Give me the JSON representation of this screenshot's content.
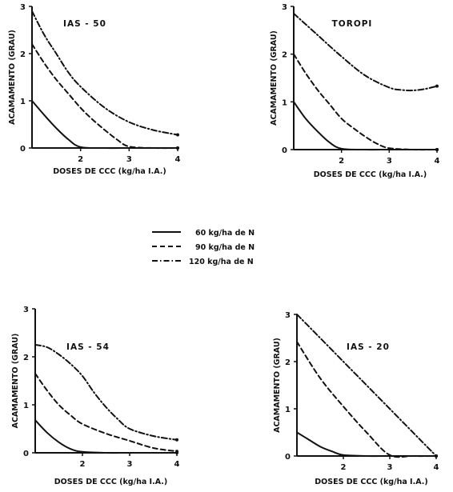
{
  "chart_data": [
    {
      "type": "line",
      "title": "IAS - 50",
      "xlabel": "DOSES DE CCC (kg/ha I.A.)",
      "ylabel": "ACAMAMENTO (GRAU)",
      "xlim": [
        1,
        4
      ],
      "ylim": [
        0,
        3
      ],
      "xticks": [
        "2",
        "3",
        "4"
      ],
      "yticks": [
        "0",
        "1",
        "2",
        "3"
      ],
      "series": [
        {
          "name": "60 kg/ha de N",
          "style": "solid",
          "x": [
            1,
            1.25,
            1.5,
            1.75,
            2,
            2.5,
            3,
            3.5,
            4
          ],
          "y": [
            1.0,
            0.7,
            0.42,
            0.18,
            0.02,
            0.0,
            0.0,
            0.0,
            0.0
          ]
        },
        {
          "name": "90 kg/ha de N",
          "style": "dashed",
          "x": [
            1,
            1.25,
            1.5,
            1.75,
            2,
            2.25,
            2.5,
            2.75,
            3,
            3.5,
            4
          ],
          "y": [
            2.2,
            1.8,
            1.45,
            1.15,
            0.85,
            0.6,
            0.38,
            0.18,
            0.03,
            0.0,
            0.0
          ]
        },
        {
          "name": "120 kg/ha de N",
          "style": "dashdot",
          "x": [
            1,
            1.25,
            1.5,
            1.75,
            2,
            2.5,
            3,
            3.5,
            4
          ],
          "y": [
            2.9,
            2.4,
            2.0,
            1.6,
            1.3,
            0.85,
            0.55,
            0.38,
            0.28
          ]
        }
      ]
    },
    {
      "type": "line",
      "title": "TOROPI",
      "xlabel": "DOSES DE CCC (kg/ha I.A.)",
      "ylabel": "ACAMAMENTO (GRAU)",
      "xlim": [
        1,
        4
      ],
      "ylim": [
        0,
        3
      ],
      "xticks": [
        "2",
        "3",
        "4"
      ],
      "yticks": [
        "0",
        "1",
        "2",
        "3"
      ],
      "series": [
        {
          "name": "60 kg/ha de N",
          "style": "solid",
          "x": [
            1,
            1.25,
            1.5,
            1.75,
            2,
            2.5,
            3,
            3.5,
            4
          ],
          "y": [
            1.0,
            0.65,
            0.38,
            0.15,
            0.02,
            0.0,
            0.0,
            0.0,
            0.0
          ]
        },
        {
          "name": "90 kg/ha de N",
          "style": "dashed",
          "x": [
            1,
            1.25,
            1.5,
            1.75,
            2,
            2.25,
            2.5,
            2.75,
            3,
            3.5,
            4
          ],
          "y": [
            2.0,
            1.6,
            1.25,
            0.95,
            0.65,
            0.45,
            0.27,
            0.12,
            0.03,
            0.0,
            0.0
          ]
        },
        {
          "name": "120 kg/ha de N",
          "style": "dashdot",
          "x": [
            1,
            1.5,
            2,
            2.5,
            3,
            3.25,
            3.5,
            3.75,
            4
          ],
          "y": [
            2.85,
            2.4,
            1.95,
            1.55,
            1.3,
            1.25,
            1.24,
            1.27,
            1.33
          ]
        }
      ]
    },
    {
      "type": "line",
      "title": "IAS - 54",
      "xlabel": "DOSES DE CCC (kg/ha I.A.)",
      "ylabel": "ACAMAMENTO (GRAU)",
      "xlim": [
        1,
        4
      ],
      "ylim": [
        0,
        3
      ],
      "xticks": [
        "2",
        "3",
        "4"
      ],
      "yticks": [
        "0",
        "1",
        "2",
        "3"
      ],
      "series": [
        {
          "name": "60 kg/ha de N",
          "style": "solid",
          "x": [
            1,
            1.25,
            1.5,
            1.75,
            2,
            2.5,
            3,
            3.5,
            4
          ],
          "y": [
            0.68,
            0.42,
            0.22,
            0.08,
            0.02,
            0.0,
            0.0,
            0.0,
            0.0
          ]
        },
        {
          "name": "90 kg/ha de N",
          "style": "dashed",
          "x": [
            1,
            1.25,
            1.5,
            1.75,
            2,
            2.5,
            3,
            3.5,
            4
          ],
          "y": [
            1.65,
            1.3,
            1.0,
            0.78,
            0.6,
            0.4,
            0.25,
            0.1,
            0.03
          ]
        },
        {
          "name": "120 kg/ha de N",
          "style": "dashdot",
          "x": [
            1,
            1.25,
            1.5,
            1.75,
            2,
            2.25,
            2.5,
            2.75,
            3,
            3.5,
            4
          ],
          "y": [
            2.25,
            2.2,
            2.05,
            1.85,
            1.6,
            1.25,
            0.95,
            0.7,
            0.5,
            0.35,
            0.27
          ]
        }
      ]
    },
    {
      "type": "line",
      "title": "IAS - 20",
      "xlabel": "DOSES DE CCC (kg/ha I.A.)",
      "ylabel": "ACAMAMENTO (GRAU)",
      "xlim": [
        1,
        4
      ],
      "ylim": [
        0,
        3
      ],
      "xticks": [
        "2",
        "3",
        "4"
      ],
      "yticks": [
        "0",
        "1",
        "2",
        "3"
      ],
      "series": [
        {
          "name": "60 kg/ha de N",
          "style": "solid",
          "x": [
            1,
            1.25,
            1.5,
            1.75,
            2,
            2.5,
            3,
            3.5,
            4
          ],
          "y": [
            0.5,
            0.35,
            0.2,
            0.1,
            0.02,
            0.0,
            0.0,
            0.0,
            0.0
          ]
        },
        {
          "name": "90 kg/ha de N",
          "style": "dashed",
          "x": [
            1,
            1.5,
            2,
            2.5,
            3,
            3.5,
            4
          ],
          "y": [
            2.42,
            1.65,
            1.05,
            0.5,
            0.02,
            0.0,
            0.0
          ]
        },
        {
          "name": "120 kg/ha de N",
          "style": "dashdot",
          "x": [
            1,
            2,
            3,
            4
          ],
          "y": [
            3.0,
            2.0,
            1.0,
            0.0
          ]
        }
      ]
    }
  ],
  "legend": {
    "placement": "center",
    "entries": [
      {
        "label": "60 kg/ha de N",
        "style": "solid"
      },
      {
        "label": "90 kg/ha de N",
        "style": "dashed"
      },
      {
        "label": "120 kg/ha de N",
        "style": "dashdot"
      }
    ]
  },
  "colors": {
    "line": "#111111",
    "background": "#ffffff"
  }
}
